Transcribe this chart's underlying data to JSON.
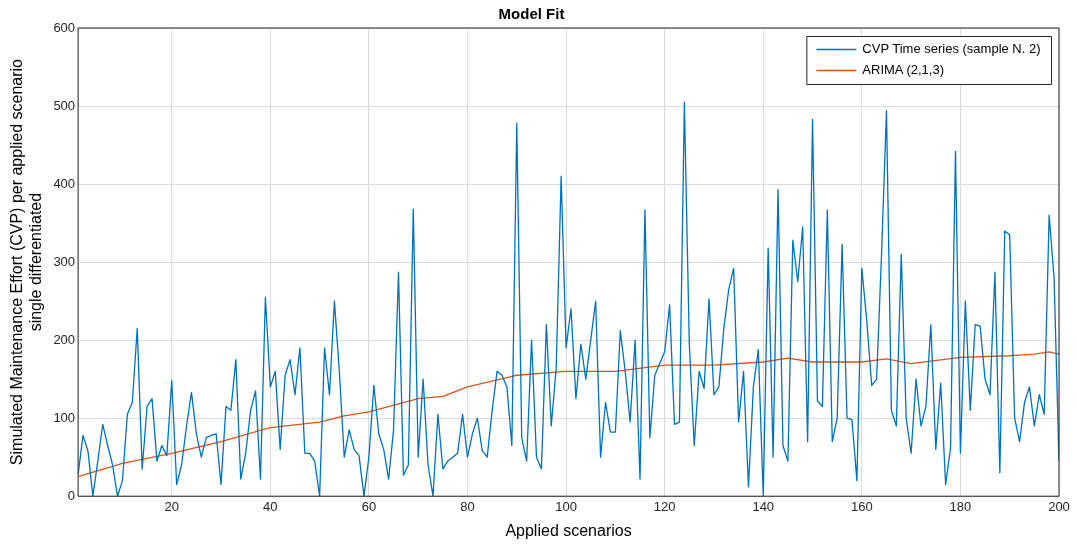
{
  "chart_data": {
    "type": "line",
    "title": "Model Fit",
    "xlabel": "Applied scenarios",
    "ylabel": "Simulated Maintenance Effort (CVP) per applied scenario\nsingle differentiated",
    "x": [
      1,
      2,
      3,
      4,
      5,
      6,
      7,
      8,
      9,
      10,
      11,
      12,
      13,
      14,
      15,
      16,
      17,
      18,
      19,
      20,
      21,
      22,
      23,
      24,
      25,
      26,
      27,
      28,
      29,
      30,
      31,
      32,
      33,
      34,
      35,
      36,
      37,
      38,
      39,
      40,
      41,
      42,
      43,
      44,
      45,
      46,
      47,
      48,
      49,
      50,
      51,
      52,
      53,
      54,
      55,
      56,
      57,
      58,
      59,
      60,
      61,
      62,
      63,
      64,
      65,
      66,
      67,
      68,
      69,
      70,
      71,
      72,
      73,
      74,
      75,
      76,
      77,
      78,
      79,
      80,
      81,
      82,
      83,
      84,
      85,
      86,
      87,
      88,
      89,
      90,
      91,
      92,
      93,
      94,
      95,
      96,
      97,
      98,
      99,
      100,
      101,
      102,
      103,
      104,
      105,
      106,
      107,
      108,
      109,
      110,
      111,
      112,
      113,
      114,
      115,
      116,
      117,
      118,
      119,
      120,
      121,
      122,
      123,
      124,
      125,
      126,
      127,
      128,
      129,
      130,
      131,
      132,
      133,
      134,
      135,
      136,
      137,
      138,
      139,
      140,
      141,
      142,
      143,
      144,
      145,
      146,
      147,
      148,
      149,
      150,
      151,
      152,
      153,
      154,
      155,
      156,
      157,
      158,
      159,
      160,
      161,
      162,
      163,
      164,
      165,
      166,
      167,
      168,
      169,
      170,
      171,
      172,
      173,
      174,
      175,
      176,
      177,
      178,
      179,
      180,
      181,
      182,
      183,
      184,
      185,
      186,
      187,
      188,
      189,
      190,
      191,
      192,
      193,
      194,
      195,
      196,
      197,
      198,
      199,
      200
    ],
    "series": [
      {
        "name": "CVP Time series (sample N. 2)",
        "color": "#0072bd",
        "values": [
          28,
          78,
          58,
          0,
          45,
          92,
          65,
          40,
          0,
          20,
          105,
          120,
          215,
          35,
          115,
          125,
          45,
          65,
          52,
          148,
          15,
          40,
          90,
          133,
          80,
          50,
          75,
          78,
          80,
          15,
          115,
          110,
          175,
          22,
          55,
          110,
          135,
          22,
          255,
          140,
          160,
          60,
          155,
          175,
          130,
          190,
          55,
          55,
          45,
          0,
          190,
          130,
          250,
          160,
          50,
          85,
          60,
          52,
          0,
          50,
          142,
          80,
          60,
          22,
          85,
          287,
          27,
          40,
          368,
          50,
          150,
          40,
          0,
          105,
          35,
          45,
          50,
          55,
          105,
          50,
          80,
          100,
          58,
          50,
          110,
          160,
          155,
          140,
          65,
          478,
          75,
          45,
          200,
          50,
          35,
          220,
          90,
          165,
          410,
          190,
          240,
          125,
          195,
          150,
          200,
          250,
          50,
          120,
          82,
          82,
          212,
          160,
          95,
          200,
          22,
          367,
          75,
          155,
          170,
          185,
          245,
          92,
          95,
          505,
          195,
          65,
          160,
          138,
          253,
          130,
          140,
          215,
          265,
          292,
          95,
          160,
          12,
          140,
          188,
          0,
          318,
          50,
          393,
          65,
          45,
          328,
          275,
          345,
          70,
          483,
          122,
          115,
          367,
          70,
          100,
          323,
          100,
          98,
          20,
          292,
          225,
          142,
          150,
          310,
          494,
          110,
          90,
          310,
          100,
          55,
          150,
          90,
          115,
          220,
          60,
          145,
          15,
          62,
          442,
          55,
          250,
          110,
          220,
          218,
          150,
          130,
          287,
          30,
          340,
          335,
          100,
          70,
          120,
          140,
          90,
          130,
          105,
          360,
          280,
          45
        ]
      },
      {
        "name": "ARIMA (2,1,3)",
        "color": "#d95319",
        "x": [
          1,
          10,
          20,
          30,
          40,
          50,
          55,
          60,
          70,
          75,
          80,
          90,
          100,
          110,
          120,
          130,
          140,
          145,
          150,
          160,
          165,
          170,
          180,
          190,
          195,
          198,
          200
        ],
        "values": [
          25,
          42,
          55,
          70,
          88,
          95,
          103,
          108,
          125,
          128,
          140,
          155,
          160,
          160,
          168,
          168,
          172,
          177,
          172,
          172,
          176,
          170,
          178,
          180,
          182,
          185,
          182
        ]
      }
    ],
    "xlim": [
      1,
      200
    ],
    "xticks": [
      20,
      40,
      60,
      80,
      100,
      120,
      140,
      160,
      180,
      200
    ],
    "ylim": [
      0,
      600
    ],
    "yticks": [
      0,
      100,
      200,
      300,
      400,
      500,
      600
    ],
    "grid": true,
    "legend": "top right",
    "marker": "none",
    "line_style": "solid"
  }
}
